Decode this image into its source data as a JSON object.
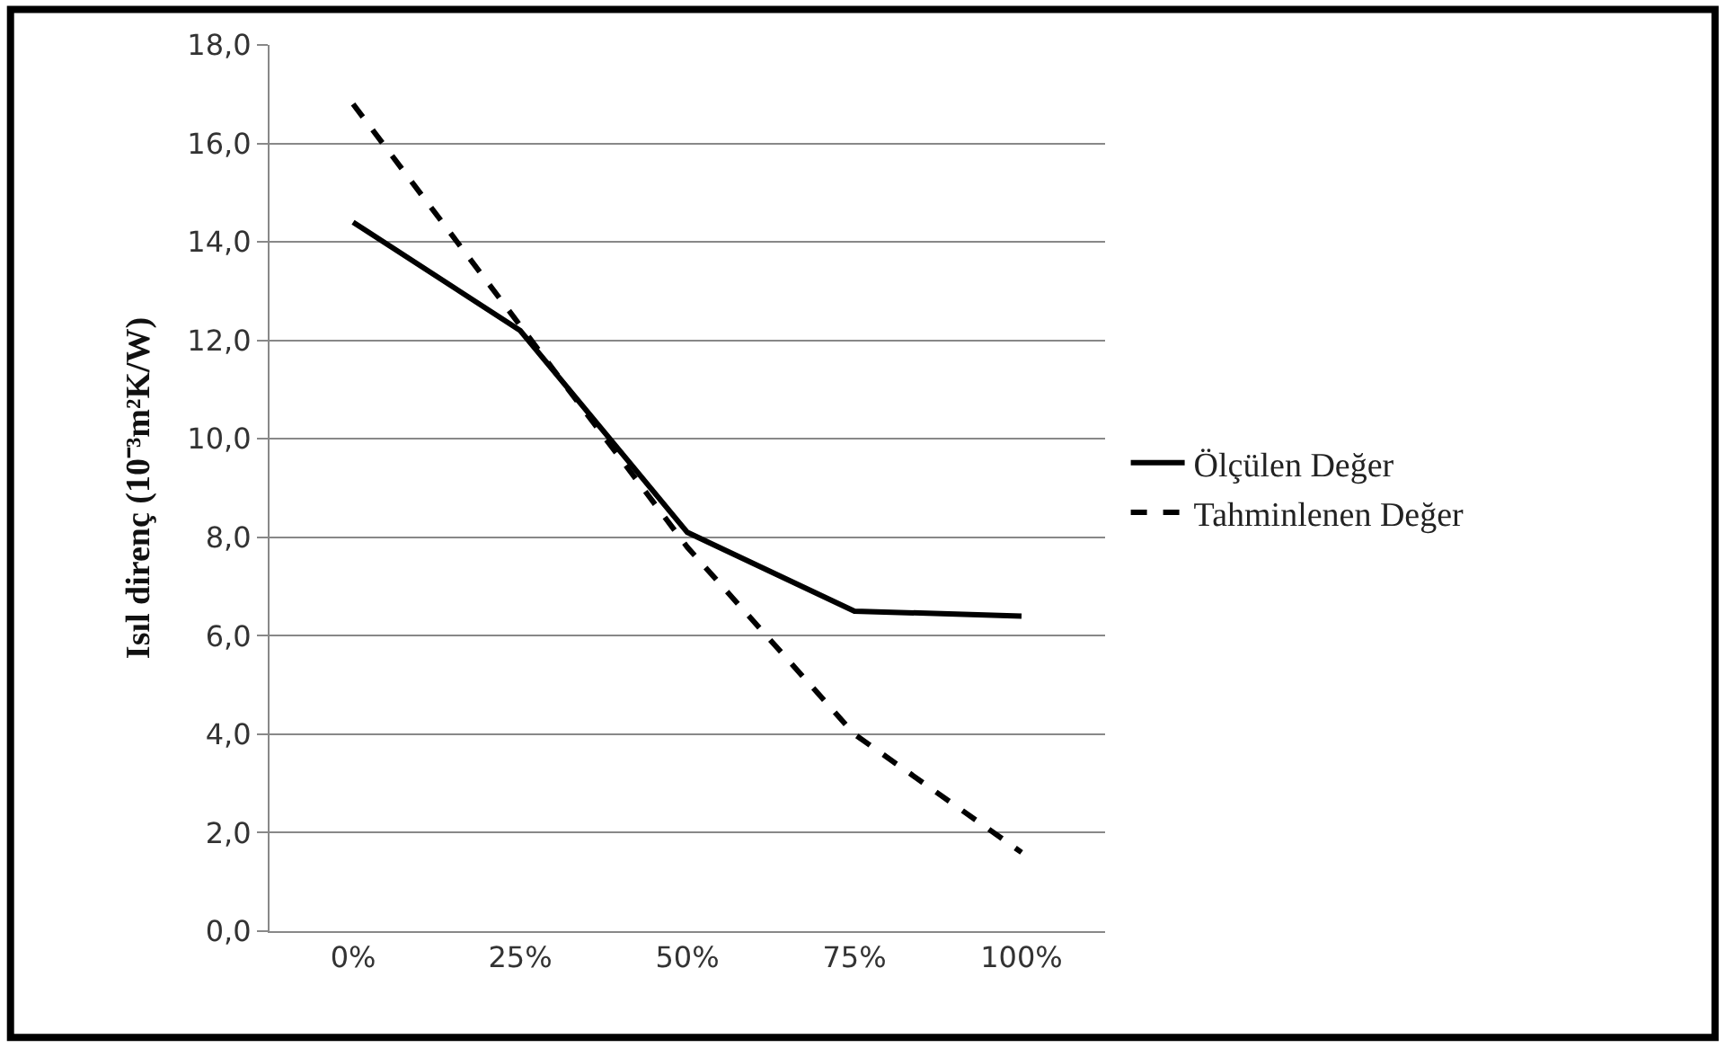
{
  "chart_data": {
    "type": "line",
    "ylabel": "Isıl direnç (10⁻³m²K/W)",
    "categories": [
      "0%",
      "25%",
      "50%",
      "75%",
      "100%"
    ],
    "series": [
      {
        "name": "Ölçülen Değer",
        "color": "#000000",
        "line_style": "solid",
        "values": [
          14.4,
          12.2,
          8.1,
          6.5,
          6.4
        ]
      },
      {
        "name": "Tahminlenen Değer",
        "color": "#000000",
        "line_style": "dashed",
        "values": [
          16.8,
          12.3,
          7.8,
          4.0,
          1.6
        ]
      }
    ],
    "ylim": [
      0,
      18
    ],
    "yticks": [
      {
        "value": 0,
        "label": "0,0"
      },
      {
        "value": 2,
        "label": "2,0"
      },
      {
        "value": 4,
        "label": "4,0"
      },
      {
        "value": 6,
        "label": "6,0"
      },
      {
        "value": 8,
        "label": "8,0"
      },
      {
        "value": 10,
        "label": "10,0"
      },
      {
        "value": 12,
        "label": "12,0"
      },
      {
        "value": 14,
        "label": "14,0"
      },
      {
        "value": 16,
        "label": "16,0"
      },
      {
        "value": 18,
        "label": "18,0"
      }
    ],
    "grid": "y",
    "legend": "right",
    "marker": "none"
  }
}
